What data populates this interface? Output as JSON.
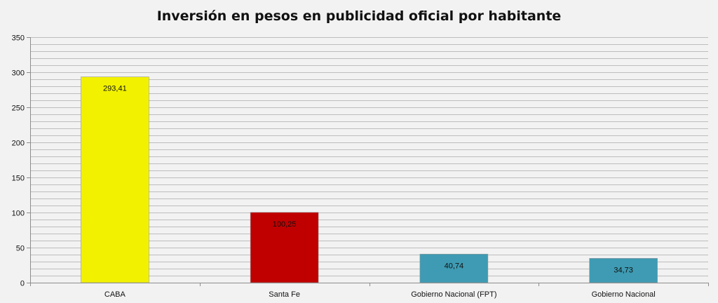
{
  "chart_data": {
    "type": "bar",
    "title": "Inversión en pesos en publicidad oficial por habitante",
    "xlabel": "",
    "ylabel": "",
    "categories": [
      "CABA",
      "Santa Fe",
      "Gobierno Nacional (FPT)",
      "Gobierno Nacional"
    ],
    "values": [
      293.41,
      100.25,
      40.74,
      34.73
    ],
    "data_labels": [
      "293,41",
      "100,25",
      "40,74",
      "34,73"
    ],
    "bar_colors": [
      "#f2f200",
      "#c00000",
      "#3e9bb3",
      "#3e9bb3"
    ],
    "ylim": [
      0,
      350
    ],
    "yticks": [
      0,
      50,
      100,
      150,
      200,
      250,
      300,
      350
    ],
    "minor_gridlines": true,
    "legend": "none"
  }
}
